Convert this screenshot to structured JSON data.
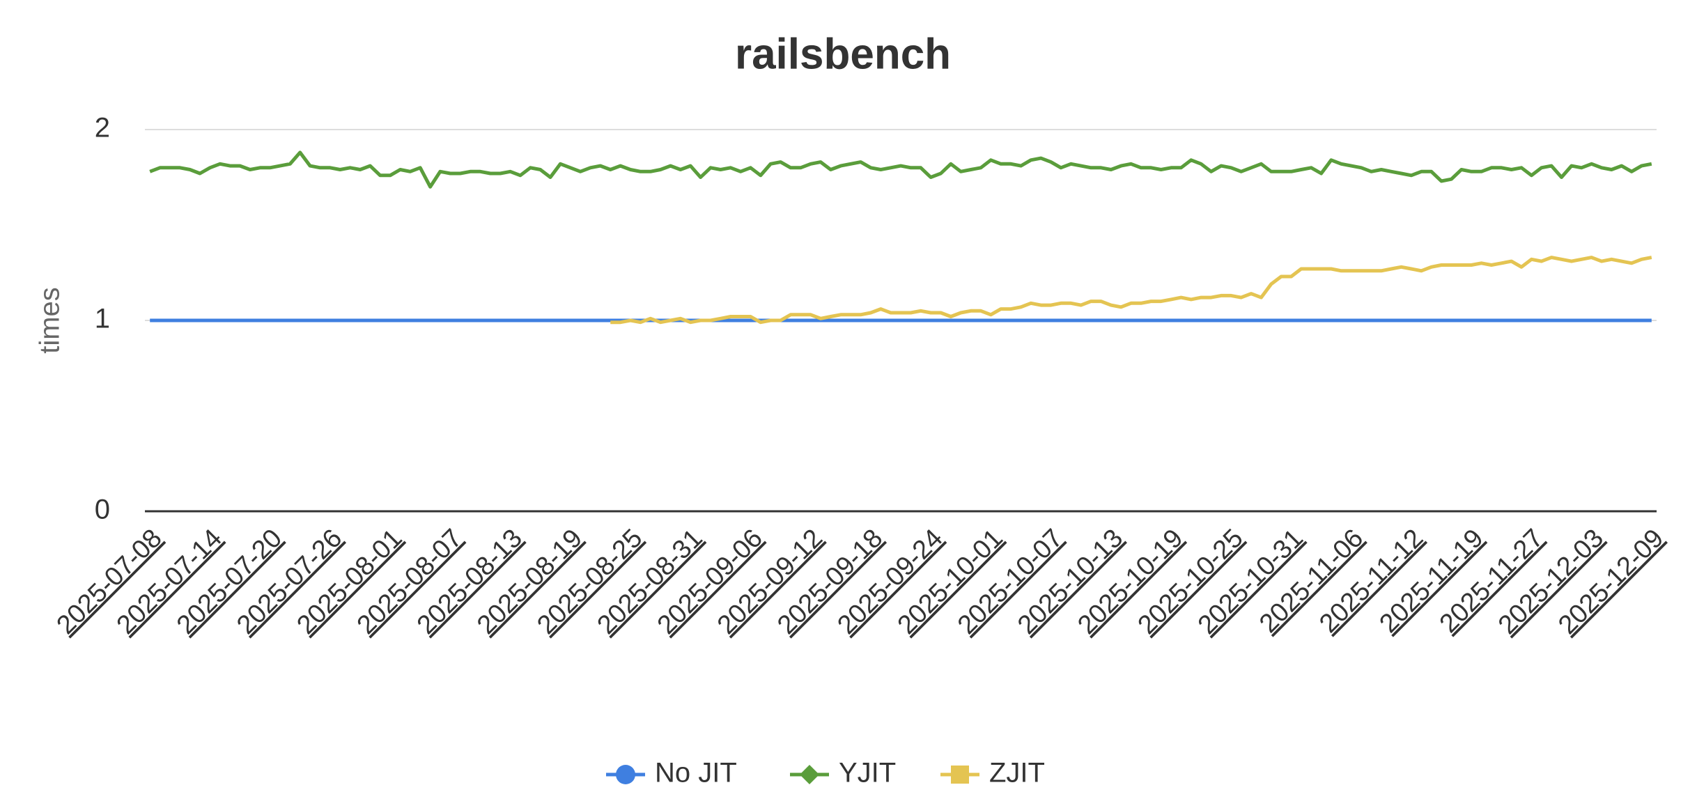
{
  "chart_data": {
    "type": "line",
    "title": "railsbench",
    "y_label": "times",
    "categories": [
      "2025-07-08",
      null,
      null,
      null,
      null,
      null,
      "2025-07-14",
      null,
      null,
      null,
      null,
      null,
      "2025-07-20",
      null,
      null,
      null,
      null,
      null,
      "2025-07-26",
      null,
      null,
      null,
      null,
      null,
      "2025-08-01",
      null,
      null,
      null,
      null,
      null,
      "2025-08-07",
      null,
      null,
      null,
      null,
      null,
      "2025-08-13",
      null,
      null,
      null,
      null,
      null,
      "2025-08-19",
      null,
      null,
      null,
      null,
      null,
      "2025-08-25",
      null,
      null,
      null,
      null,
      null,
      "2025-08-31",
      null,
      null,
      null,
      null,
      null,
      "2025-09-06",
      null,
      null,
      null,
      null,
      null,
      "2025-09-12",
      null,
      null,
      null,
      null,
      null,
      "2025-09-18",
      null,
      null,
      null,
      null,
      null,
      "2025-09-24",
      null,
      null,
      null,
      null,
      null,
      "2025-10-01",
      null,
      null,
      null,
      null,
      null,
      "2025-10-07",
      null,
      null,
      null,
      null,
      null,
      "2025-10-13",
      null,
      null,
      null,
      null,
      null,
      "2025-10-19",
      null,
      null,
      null,
      null,
      null,
      "2025-10-25",
      null,
      null,
      null,
      null,
      null,
      "2025-10-31",
      null,
      null,
      null,
      null,
      null,
      "2025-11-06",
      null,
      null,
      null,
      null,
      null,
      "2025-11-12",
      null,
      null,
      null,
      null,
      null,
      "2025-11-19",
      null,
      null,
      null,
      null,
      null,
      "2025-11-27",
      null,
      null,
      null,
      null,
      null,
      "2025-12-03",
      null,
      null,
      null,
      null,
      null,
      "2025-12-09"
    ],
    "series": [
      {
        "name": "No JIT",
        "color": "#3f7fe0",
        "marker": "circle",
        "values": [
          1,
          1,
          1,
          1,
          1,
          1,
          1,
          1,
          1,
          1,
          1,
          1,
          1,
          1,
          1,
          1,
          1,
          1,
          1,
          1,
          1,
          1,
          1,
          1,
          1,
          1,
          1,
          1,
          1,
          1,
          1,
          1,
          1,
          1,
          1,
          1,
          1,
          1,
          1,
          1,
          1,
          1,
          1,
          1,
          1,
          1,
          1,
          1,
          1,
          1,
          1,
          1,
          1,
          1,
          1,
          1,
          1,
          1,
          1,
          1,
          1,
          1,
          1,
          1,
          1,
          1,
          1,
          1,
          1,
          1,
          1,
          1,
          1,
          1,
          1,
          1,
          1,
          1,
          1,
          1,
          1,
          1,
          1,
          1,
          1,
          1,
          1,
          1,
          1,
          1,
          1,
          1,
          1,
          1,
          1,
          1,
          1,
          1,
          1,
          1,
          1,
          1,
          1,
          1,
          1,
          1,
          1,
          1,
          1,
          1,
          1,
          1,
          1,
          1,
          1,
          1,
          1,
          1,
          1,
          1,
          1,
          1,
          1,
          1,
          1,
          1,
          1,
          1,
          1,
          1,
          1,
          1,
          1,
          1,
          1,
          1,
          1,
          1,
          1,
          1,
          1,
          1,
          1,
          1,
          1,
          1,
          1,
          1,
          1,
          1,
          1
        ]
      },
      {
        "name": "YJIT",
        "color": "#5a9d3b",
        "marker": "diamond",
        "values": [
          1.78,
          1.8,
          1.8,
          1.8,
          1.79,
          1.77,
          1.8,
          1.82,
          1.81,
          1.81,
          1.79,
          1.8,
          1.8,
          1.81,
          1.82,
          1.88,
          1.81,
          1.8,
          1.8,
          1.79,
          1.8,
          1.79,
          1.81,
          1.76,
          1.76,
          1.79,
          1.78,
          1.8,
          1.7,
          1.78,
          1.77,
          1.77,
          1.78,
          1.78,
          1.77,
          1.77,
          1.78,
          1.76,
          1.8,
          1.79,
          1.75,
          1.82,
          1.8,
          1.78,
          1.8,
          1.81,
          1.79,
          1.81,
          1.79,
          1.78,
          1.78,
          1.79,
          1.81,
          1.79,
          1.81,
          1.75,
          1.8,
          1.79,
          1.8,
          1.78,
          1.8,
          1.76,
          1.82,
          1.83,
          1.8,
          1.8,
          1.82,
          1.83,
          1.79,
          1.81,
          1.82,
          1.83,
          1.8,
          1.79,
          1.8,
          1.81,
          1.8,
          1.8,
          1.75,
          1.77,
          1.82,
          1.78,
          1.79,
          1.8,
          1.84,
          1.82,
          1.82,
          1.81,
          1.84,
          1.85,
          1.83,
          1.8,
          1.82,
          1.81,
          1.8,
          1.8,
          1.79,
          1.81,
          1.82,
          1.8,
          1.8,
          1.79,
          1.8,
          1.8,
          1.84,
          1.82,
          1.78,
          1.81,
          1.8,
          1.78,
          1.8,
          1.82,
          1.78,
          1.78,
          1.78,
          1.79,
          1.8,
          1.77,
          1.84,
          1.82,
          1.81,
          1.8,
          1.78,
          1.79,
          1.78,
          1.77,
          1.76,
          1.78,
          1.78,
          1.73,
          1.74,
          1.79,
          1.78,
          1.78,
          1.8,
          1.8,
          1.79,
          1.8,
          1.76,
          1.8,
          1.81,
          1.75,
          1.81,
          1.8,
          1.82,
          1.8,
          1.79,
          1.81,
          1.78,
          1.81,
          1.82
        ]
      },
      {
        "name": "ZJIT",
        "color": "#e4c452",
        "marker": "square",
        "values": [
          null,
          null,
          null,
          null,
          null,
          null,
          null,
          null,
          null,
          null,
          null,
          null,
          null,
          null,
          null,
          null,
          null,
          null,
          null,
          null,
          null,
          null,
          null,
          null,
          null,
          null,
          null,
          null,
          null,
          null,
          null,
          null,
          null,
          null,
          null,
          null,
          null,
          null,
          null,
          null,
          null,
          null,
          null,
          null,
          null,
          null,
          0.99,
          0.99,
          1.0,
          0.99,
          1.01,
          0.99,
          1.0,
          1.01,
          0.99,
          1.0,
          1.0,
          1.01,
          1.02,
          1.02,
          1.02,
          0.99,
          1.0,
          1.0,
          1.03,
          1.03,
          1.03,
          1.01,
          1.02,
          1.03,
          1.03,
          1.03,
          1.04,
          1.06,
          1.04,
          1.04,
          1.04,
          1.05,
          1.04,
          1.04,
          1.02,
          1.04,
          1.05,
          1.05,
          1.03,
          1.06,
          1.06,
          1.07,
          1.09,
          1.08,
          1.08,
          1.09,
          1.09,
          1.08,
          1.1,
          1.1,
          1.08,
          1.07,
          1.09,
          1.09,
          1.1,
          1.1,
          1.11,
          1.12,
          1.11,
          1.12,
          1.12,
          1.13,
          1.13,
          1.12,
          1.14,
          1.12,
          1.19,
          1.23,
          1.23,
          1.27,
          1.27,
          1.27,
          1.27,
          1.26,
          1.26,
          1.26,
          1.26,
          1.26,
          1.27,
          1.28,
          1.27,
          1.26,
          1.28,
          1.29,
          1.29,
          1.29,
          1.29,
          1.3,
          1.29,
          1.3,
          1.31,
          1.28,
          1.32,
          1.31,
          1.33,
          1.32,
          1.31,
          1.32,
          1.33,
          1.31,
          1.32,
          1.31,
          1.3,
          1.32,
          1.33
        ]
      }
    ],
    "ylim": [
      0,
      2
    ],
    "yticks": [
      0,
      1,
      2
    ],
    "grid": true,
    "legend": "bottom"
  }
}
